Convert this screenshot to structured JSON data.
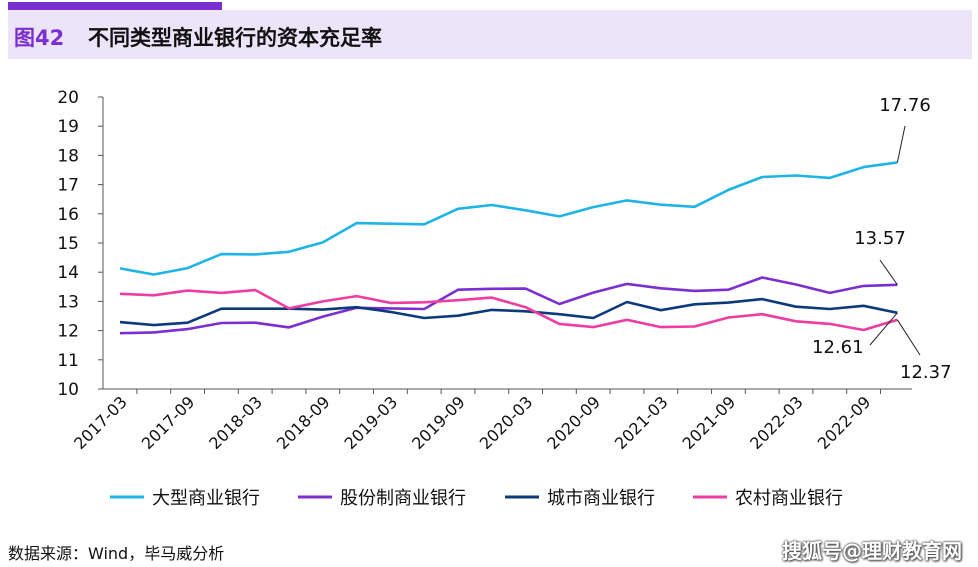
{
  "header": {
    "figure_number": "图42",
    "title": "不同类型商业银行的资本充足率"
  },
  "footer": {
    "source": "数据来源：Wind，毕马威分析",
    "watermark": "搜狐号@理财教育网"
  },
  "colors": {
    "accent": "#7b2fd0",
    "header_band": "#ece4f8"
  },
  "chart_data": {
    "type": "line",
    "ylim": [
      10,
      20
    ],
    "yticks": [
      "10",
      "11",
      "12",
      "13",
      "14",
      "15",
      "16",
      "17",
      "18",
      "19",
      "20"
    ],
    "grid": false,
    "legend_position": "bottom",
    "x": [
      "2017-03",
      "2017-06",
      "2017-09",
      "2017-12",
      "2018-03",
      "2018-06",
      "2018-09",
      "2018-12",
      "2019-03",
      "2019-06",
      "2019-09",
      "2019-12",
      "2020-03",
      "2020-06",
      "2020-09",
      "2020-12",
      "2021-03",
      "2021-06",
      "2021-09",
      "2021-12",
      "2022-03",
      "2022-06",
      "2022-09",
      "2022-12"
    ],
    "xtick_labels": [
      "2017-03",
      "2017-09",
      "2018-03",
      "2018-09",
      "2019-03",
      "2019-09",
      "2020-03",
      "2020-09",
      "2021-03",
      "2021-09",
      "2022-03",
      "2022-09"
    ],
    "series": [
      {
        "name": "大型商业银行",
        "color": "#1eb4e8",
        "values": [
          14.13,
          13.92,
          14.14,
          14.62,
          14.61,
          14.7,
          15.02,
          15.68,
          15.66,
          15.64,
          16.17,
          16.3,
          16.12,
          15.91,
          16.23,
          16.46,
          16.31,
          16.24,
          16.82,
          17.26,
          17.31,
          17.23,
          17.6,
          17.76
        ]
      },
      {
        "name": "股份制商业银行",
        "color": "#7b2fd0",
        "values": [
          11.91,
          11.94,
          12.05,
          12.26,
          12.27,
          12.11,
          12.48,
          12.78,
          12.76,
          12.74,
          13.4,
          13.43,
          13.44,
          12.91,
          13.3,
          13.6,
          13.45,
          13.36,
          13.4,
          13.82,
          13.58,
          13.29,
          13.53,
          13.57
        ]
      },
      {
        "name": "城市商业银行",
        "color": "#0d3a7a",
        "values": [
          12.29,
          12.19,
          12.27,
          12.75,
          12.75,
          12.75,
          12.72,
          12.8,
          12.64,
          12.43,
          12.51,
          12.71,
          12.66,
          12.56,
          12.43,
          12.98,
          12.7,
          12.9,
          12.96,
          13.08,
          12.82,
          12.74,
          12.85,
          12.61
        ]
      },
      {
        "name": "农村商业银行",
        "color": "#ee3da2",
        "values": [
          13.26,
          13.21,
          13.37,
          13.29,
          13.39,
          12.76,
          13.0,
          13.18,
          12.95,
          12.97,
          13.04,
          13.13,
          12.8,
          12.23,
          12.12,
          12.37,
          12.12,
          12.14,
          12.45,
          12.56,
          12.32,
          12.23,
          12.02,
          12.37
        ]
      }
    ],
    "annotations": [
      {
        "text": "17.76",
        "series": 0
      },
      {
        "text": "13.57",
        "series": 1
      },
      {
        "text": "12.61",
        "series": 2
      },
      {
        "text": "12.37",
        "series": 3
      }
    ]
  }
}
